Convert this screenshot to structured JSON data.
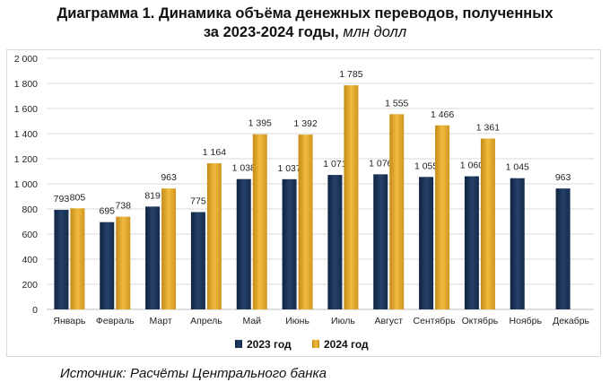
{
  "title": {
    "line1": "Диаграмма 1. Динамика объёма денежных переводов, полученных",
    "line2_bold": "за 2023-2024 годы,",
    "line2_unit": "млн долл"
  },
  "source": "Источник: Расчёты Центрального банка",
  "chart_data": {
    "type": "bar",
    "title": "Диаграмма 1. Динамика объёма денежных переводов, полученных за 2023-2024 годы, млн долл",
    "xlabel": "",
    "ylabel": "млн долл",
    "ylim": [
      0,
      2000
    ],
    "yticks": [
      0,
      200,
      400,
      600,
      800,
      1000,
      1200,
      1400,
      1600,
      1800,
      2000
    ],
    "ytick_labels": [
      "0",
      "200",
      "400",
      "600",
      "800",
      "1 000",
      "1 200",
      "1 400",
      "1 600",
      "1 800",
      "2 000"
    ],
    "grid": true,
    "legend_position": "bottom",
    "categories": [
      "Январь",
      "Февраль",
      "Март",
      "Апрель",
      "Май",
      "Июнь",
      "Июль",
      "Август",
      "Сентябрь",
      "Октябрь",
      "Ноябрь",
      "Декабрь"
    ],
    "series": [
      {
        "name": "2023 год",
        "color": "#1b3253",
        "values": [
          793,
          695,
          819,
          775,
          1038,
          1037,
          1071,
          1076,
          1055,
          1060,
          1045,
          963
        ],
        "labels": [
          "793",
          "695",
          "819",
          "775",
          "1 038",
          "1 037",
          "1 071",
          "1 076",
          "1 055",
          "1 060",
          "1 045",
          "963"
        ]
      },
      {
        "name": "2024 год",
        "color": "#dca22a",
        "values": [
          805,
          738,
          963,
          1164,
          1395,
          1392,
          1785,
          1555,
          1466,
          1361,
          null,
          null
        ],
        "labels": [
          "805",
          "738",
          "963",
          "1 164",
          "1 395",
          "1 392",
          "1 785",
          "1 555",
          "1 466",
          "1 361",
          null,
          null
        ]
      }
    ]
  }
}
